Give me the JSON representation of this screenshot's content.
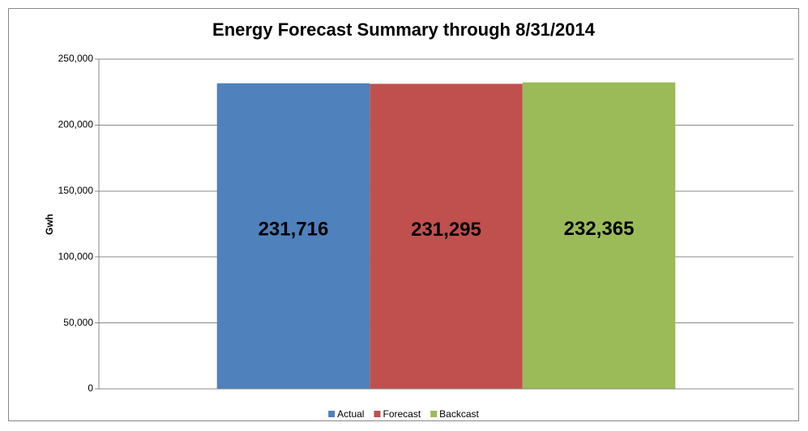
{
  "chart_data": {
    "type": "bar",
    "title": "Energy Forecast Summary through 8/31/2014",
    "y_label": "Gwh",
    "categories": [
      null
    ],
    "series": [
      {
        "name": "Actual",
        "color": "#4f81bd",
        "values": [
          231716
        ],
        "value_labels": [
          "231,716"
        ]
      },
      {
        "name": "Forecast",
        "color": "#c0504d",
        "values": [
          231295
        ],
        "value_labels": [
          "231,295"
        ]
      },
      {
        "name": "Backcast",
        "color": "#9bbb59",
        "values": [
          232365
        ],
        "value_labels": [
          "232,365"
        ]
      }
    ],
    "ylim": [
      0,
      250000
    ],
    "yticks": [
      0,
      {
        "value": 50000,
        "label": "50,000"
      },
      {
        "value": 100000,
        "label": "100,000"
      },
      {
        "value": 150000,
        "label": "150,000"
      },
      {
        "value": 200000,
        "label": "200,000"
      },
      {
        "value": 250000,
        "label": "250,000"
      }
    ],
    "grid": true,
    "legend": "bottom"
  }
}
